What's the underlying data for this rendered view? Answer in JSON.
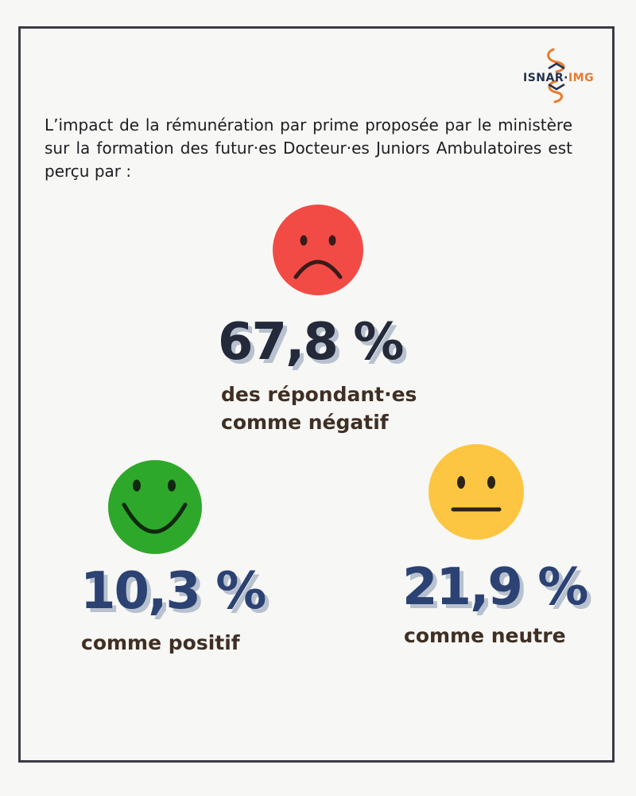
{
  "logo": {
    "text_left": "ISNAR",
    "text_dot": "·",
    "text_right": "IMG"
  },
  "intro": "L’impact de la rémunération par prime proposée par le ministère sur la formation des futur·es Docteur·es Juniors Ambulatoires est perçu par :",
  "colors": {
    "negative": "#f24b45",
    "positive": "#2ea82b",
    "neutral": "#fcc642",
    "dark_value": "#252a3a",
    "blue_value": "#2b4273",
    "caption": "#3f2f24"
  },
  "chart_data": {
    "type": "pie",
    "categories": [
      "négatif",
      "positif",
      "neutre"
    ],
    "values": [
      67.8,
      10.3,
      21.9
    ],
    "value_labels": [
      "67,8 %",
      "10,3 %",
      "21,9 %"
    ],
    "captions": [
      [
        "des répondant·es",
        "comme négatif"
      ],
      [
        "comme positif"
      ],
      [
        "comme neutre"
      ]
    ],
    "icons": [
      "sad-face-icon",
      "smiling-face-icon",
      "neutral-face-icon"
    ]
  }
}
